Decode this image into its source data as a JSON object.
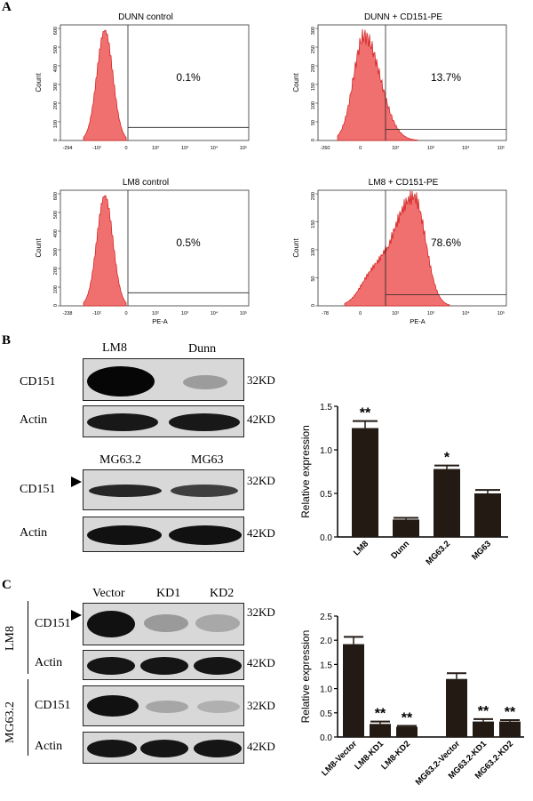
{
  "panels": {
    "a": "A",
    "b": "B",
    "c": "C"
  },
  "flow_plots": [
    {
      "title": "DUNN control",
      "percent": "0.1%",
      "ylabel": "Count",
      "xlabel": "",
      "yticks": [
        "600",
        "500",
        "400",
        "300",
        "200",
        "100",
        "0"
      ],
      "ymax": 600,
      "peak_y": 590,
      "xticks": [
        "-294",
        "-10²",
        "0",
        "10²",
        "10³",
        "10⁴",
        "10⁵"
      ],
      "gate_value": 70,
      "shape": "narrow-control"
    },
    {
      "title": "DUNN + CD151-PE",
      "percent": "13.7%",
      "ylabel": "Count",
      "xlabel": "",
      "yticks": [
        "300",
        "250",
        "200",
        "150",
        "100",
        "50",
        "0"
      ],
      "ymax": 300,
      "peak_y": 280,
      "xticks": [
        "-260",
        "0",
        "10²",
        "10³",
        "10⁴",
        "10⁵"
      ],
      "gate_value": 30,
      "shape": "wide-left"
    },
    {
      "title": "LM8 control",
      "percent": "0.5%",
      "ylabel": "Count",
      "xlabel": "PE-A",
      "yticks": [
        "600",
        "500",
        "400",
        "300",
        "200",
        "100",
        "0"
      ],
      "ymax": 600,
      "peak_y": 590,
      "xticks": [
        "-238",
        "-10²",
        "0",
        "10²",
        "10³",
        "10⁴",
        "10⁵"
      ],
      "gate_value": 70,
      "shape": "narrow-control"
    },
    {
      "title": "LM8 + CD151-PE",
      "percent": "78.6%",
      "ylabel": "Count",
      "xlabel": "PE-A",
      "yticks": [
        "200",
        "150",
        "100",
        "50",
        "0"
      ],
      "ymax": 200,
      "peak_y": 195,
      "xticks": [
        "-78",
        "0",
        "10²",
        "10³",
        "10⁴",
        "10⁵"
      ],
      "gate_value": 20,
      "shape": "shifted-right"
    }
  ],
  "blots": {
    "b_lanes_top": [
      "LM8",
      "Dunn"
    ],
    "b_lanes_mid": [
      "MG63.2",
      "MG63"
    ],
    "c_lanes": [
      "Vector",
      "KD1",
      "KD2"
    ],
    "cd151": "CD151",
    "actin": "Actin",
    "kd32": "32KD",
    "kd42": "42KD",
    "lm8_side": "LM8",
    "mg632_side": "MG63.2"
  },
  "chart_data": [
    {
      "type": "bar",
      "title": "",
      "xlabel": "",
      "ylabel": "Relative expression",
      "categories": [
        "LM8",
        "Dunn",
        "MG63.2",
        "MG63"
      ],
      "values": [
        1.25,
        0.2,
        0.78,
        0.5
      ],
      "errors": [
        0.08,
        0.02,
        0.04,
        0.04
      ],
      "significance": [
        "**",
        "",
        "*",
        ""
      ],
      "ylim": [
        0,
        1.5
      ],
      "yticks": [
        "0.0",
        "0.5",
        "1.0",
        "1.5"
      ]
    },
    {
      "type": "bar",
      "title": "",
      "xlabel": "",
      "ylabel": "Relative expression",
      "categories": [
        "LM8-Vector",
        "LM8-KD1",
        "LM8-KD2",
        "MG63.2-Vector",
        "MG63.2-KD1",
        "MG63.2-KD2"
      ],
      "values": [
        1.92,
        0.27,
        0.21,
        1.2,
        0.32,
        0.32
      ],
      "errors": [
        0.15,
        0.05,
        0.02,
        0.12,
        0.05,
        0.03
      ],
      "significance": [
        "",
        "**",
        "**",
        "",
        "**",
        "**"
      ],
      "ylim": [
        0,
        2.5
      ],
      "yticks": [
        "0.0",
        "0.5",
        "1.0",
        "1.5",
        "2.0",
        "2.5"
      ]
    }
  ]
}
